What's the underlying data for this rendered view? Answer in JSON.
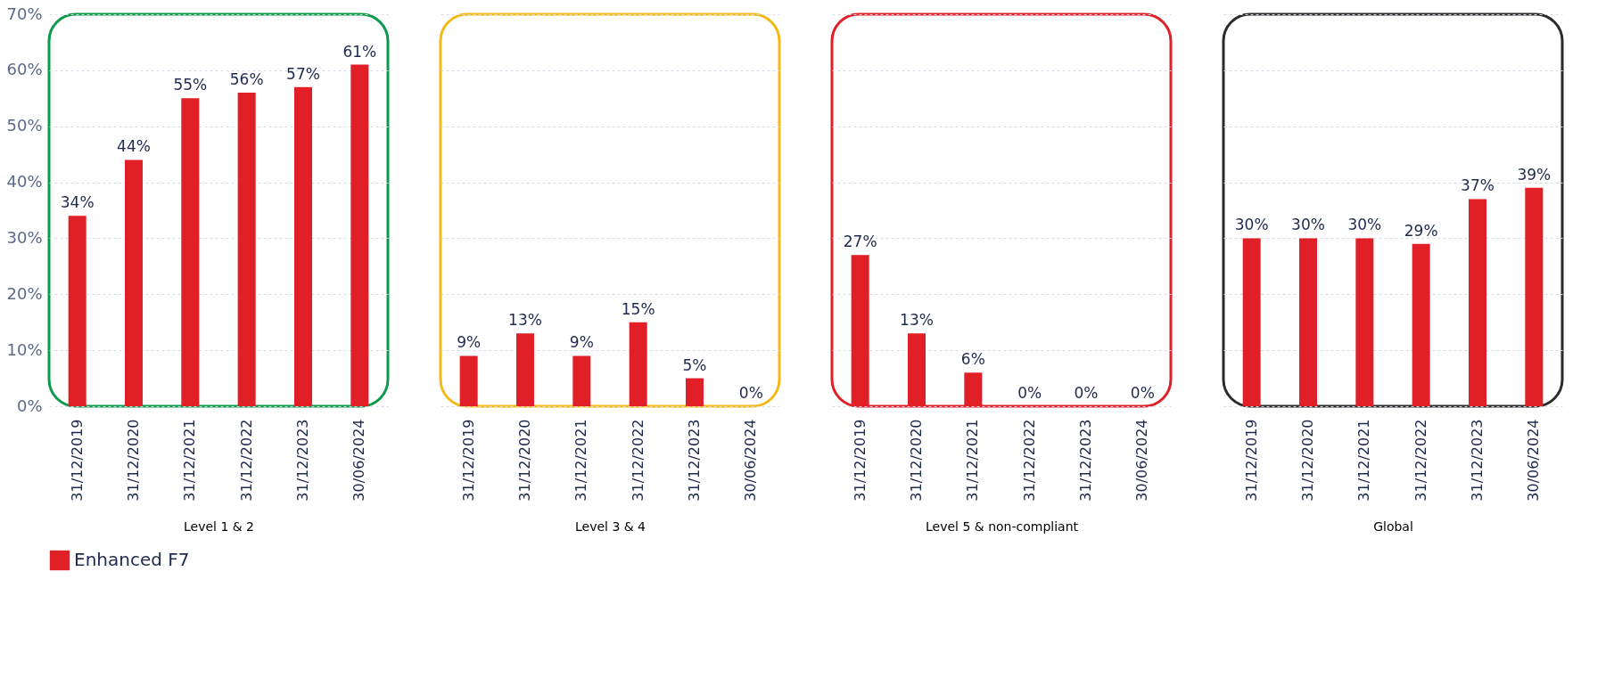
{
  "chart_data": [
    {
      "type": "bar",
      "categories": [
        "31/12/2019",
        "31/12/2020",
        "31/12/2021",
        "31/12/2022",
        "31/12/2023",
        "30/06/2024"
      ],
      "xlabel": "Level 1 & 2",
      "series": [
        {
          "name": "Enhanced F7",
          "color": "#e01f26",
          "values": [
            34,
            44,
            55,
            56,
            57,
            61
          ],
          "value_labels": [
            "34%",
            "44%",
            "55%",
            "56%",
            "57%",
            "61%"
          ]
        }
      ],
      "ylim": [
        0,
        70
      ],
      "yticks": [
        {
          "value": 0,
          "label": "0%"
        },
        {
          "value": 10,
          "label": "10%"
        },
        {
          "value": 20,
          "label": "20%"
        },
        {
          "value": 30,
          "label": "30%"
        },
        {
          "value": 40,
          "label": "40%"
        },
        {
          "value": 50,
          "label": "50%"
        },
        {
          "value": 60,
          "label": "60%"
        },
        {
          "value": 70,
          "label": "70%"
        }
      ],
      "grid": "y",
      "legend": "bottom"
    },
    {
      "type": "bar",
      "categories": [
        "31/12/2019",
        "31/12/2020",
        "31/12/2021",
        "31/12/2022",
        "31/12/2023",
        "30/06/2024"
      ],
      "xlabel": "Level 3 & 4",
      "series": [
        {
          "color": "#e01f26",
          "values": [
            9,
            13,
            9,
            15,
            5,
            0
          ],
          "value_labels": [
            "9%",
            "13%",
            "9%",
            "15%",
            "5%",
            "0%"
          ]
        }
      ],
      "ylim": [
        0,
        70
      ],
      "yticks": [
        {
          "value": 0,
          "label": null
        },
        {
          "value": 10,
          "label": null
        },
        {
          "value": 20,
          "label": null
        },
        {
          "value": 30,
          "label": null
        },
        {
          "value": 40,
          "label": null
        },
        {
          "value": 50,
          "label": null
        },
        {
          "value": 60,
          "label": null
        },
        {
          "value": 70,
          "label": null
        }
      ],
      "grid": "y",
      "tick_labels": "x"
    },
    {
      "type": "bar",
      "categories": [
        "31/12/2019",
        "31/12/2020",
        "31/12/2021",
        "31/12/2022",
        "31/12/2023",
        "30/06/2024"
      ],
      "xlabel": "Level 5 & non-compliant",
      "series": [
        {
          "color": "#e01f26",
          "values": [
            27,
            13,
            6,
            0,
            0,
            0
          ],
          "value_labels": [
            "27%",
            "13%",
            "6%",
            "0%",
            "0%",
            "0%"
          ]
        }
      ],
      "ylim": [
        0,
        70
      ],
      "yticks": [
        {
          "value": 0,
          "label": null
        },
        {
          "value": 10,
          "label": null
        },
        {
          "value": 20,
          "label": null
        },
        {
          "value": 30,
          "label": null
        },
        {
          "value": 40,
          "label": null
        },
        {
          "value": 50,
          "label": null
        },
        {
          "value": 60,
          "label": null
        },
        {
          "value": 70,
          "label": null
        }
      ],
      "grid": "y",
      "tick_labels": "x"
    },
    {
      "type": "bar",
      "categories": [
        "31/12/2019",
        "31/12/2020",
        "31/12/2021",
        "31/12/2022",
        "31/12/2023",
        "30/06/2024"
      ],
      "xlabel": "Global",
      "series": [
        {
          "color": "#e01f26",
          "values": [
            30,
            30,
            30,
            29,
            37,
            39
          ],
          "value_labels": [
            "30%",
            "30%",
            "30%",
            "29%",
            "37%",
            "39%"
          ]
        }
      ],
      "ylim": [
        0,
        70
      ],
      "yticks": [
        {
          "value": 0,
          "label": null
        },
        {
          "value": 10,
          "label": null
        },
        {
          "value": 20,
          "label": null
        },
        {
          "value": 30,
          "label": null
        },
        {
          "value": 40,
          "label": null
        },
        {
          "value": 50,
          "label": null
        },
        {
          "value": 60,
          "label": null
        },
        {
          "value": 70,
          "label": null
        }
      ],
      "grid": "y",
      "tick_labels": "x"
    }
  ]
}
